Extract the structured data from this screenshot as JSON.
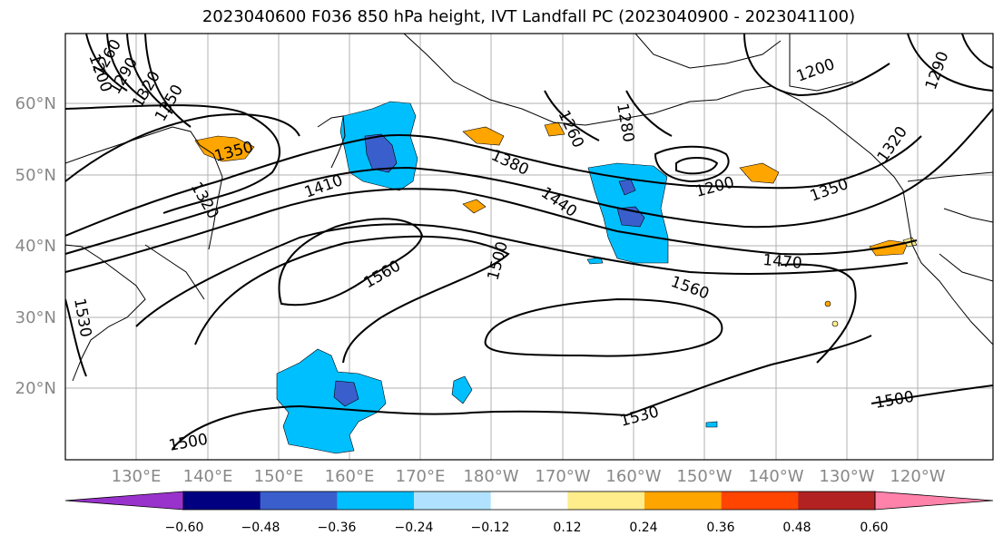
{
  "title": "2023040600 F036 850 hPa height, IVT Landfall PC (2023040900 - 2023041100)",
  "lat_labels": [
    "60°N",
    "50°N",
    "40°N",
    "30°N",
    "20°N"
  ],
  "lon_labels": [
    "130°E",
    "140°E",
    "150°E",
    "160°E",
    "170°E",
    "180°W",
    "170°W",
    "160°W",
    "150°W",
    "140°W",
    "130°W",
    "120°W"
  ],
  "contour_labels": [
    "1200",
    "1260",
    "1290",
    "1320",
    "1350",
    "1350",
    "1320",
    "1410",
    "1380",
    "1440",
    "1560",
    "1500",
    "1560",
    "1470",
    "1260",
    "1280",
    "1200",
    "1200",
    "1350",
    "1320",
    "1290",
    "1530",
    "1500",
    "1500",
    "1530"
  ],
  "colorbar": {
    "ticks": [
      "−0.60",
      "−0.48",
      "−0.36",
      "−0.24",
      "−0.12",
      "0.12",
      "0.24",
      "0.36",
      "0.48",
      "0.60"
    ],
    "colors": [
      "#9932cc",
      "#000080",
      "#3a5fcd",
      "#00bfff",
      "#b0e2ff",
      "#ffffff",
      "#ffec8b",
      "#ffa500",
      "#ff4500",
      "#b22222",
      "#ff82ab"
    ]
  }
}
